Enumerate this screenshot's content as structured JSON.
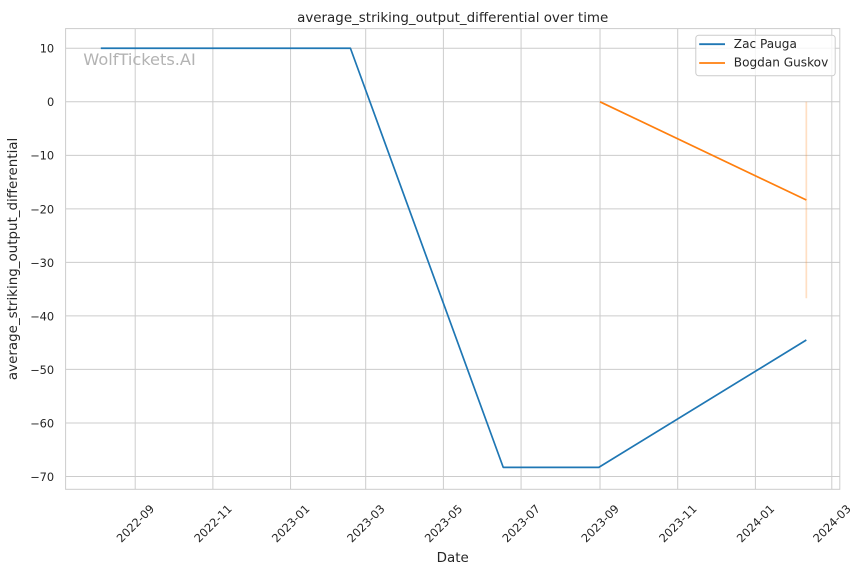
{
  "chart_data": {
    "type": "line",
    "title": "average_striking_output_differential over time",
    "xlabel": "Date",
    "ylabel": "average_striking_output_differential",
    "watermark": "WolfTickets.AI",
    "grid": true,
    "legend": {
      "position": "upper right",
      "entries": [
        {
          "label": "Zac Pauga",
          "color": "#1f77b4"
        },
        {
          "label": "Bogdan Guskov",
          "color": "#ff7f0e"
        }
      ]
    },
    "x_axis": {
      "label": "Date",
      "tick_labels": [
        "2022-09",
        "2022-11",
        "2023-01",
        "2023-03",
        "2023-05",
        "2023-07",
        "2023-09",
        "2023-11",
        "2024-01",
        "2024-03"
      ],
      "range": [
        "2022-07-08",
        "2024-03-09"
      ]
    },
    "y_axis": {
      "label": "average_striking_output_differential",
      "tick_labels": [
        "10",
        "0",
        "−10",
        "−20",
        "−30",
        "−40",
        "−50",
        "−60",
        "−70"
      ],
      "tick_values": [
        10,
        0,
        -10,
        -20,
        -30,
        -40,
        -50,
        -60,
        -70
      ],
      "range": [
        -72.3,
        13.9
      ]
    },
    "series": [
      {
        "name": "Zac Pauga",
        "color": "#1f77b4",
        "points": [
          {
            "date": "2022-08-05",
            "value": 10
          },
          {
            "date": "2023-02-17",
            "value": 10
          },
          {
            "date": "2023-06-17",
            "value": -68.3
          },
          {
            "date": "2023-08-31",
            "value": -68.3
          },
          {
            "date": "2024-02-10",
            "value": -44.5
          }
        ]
      },
      {
        "name": "Bogdan Guskov",
        "color": "#ff7f0e",
        "points": [
          {
            "date": "2023-09-01",
            "value": 0
          },
          {
            "date": "2024-02-10",
            "value": -18.35
          }
        ],
        "error_bars": [
          {
            "date": "2024-02-10",
            "low": -36.7,
            "high": 0
          }
        ]
      }
    ],
    "colors": {
      "grid": "#cccccc",
      "spine": "#cccccc",
      "text": "#262626",
      "watermark": "#b3b3b3",
      "background": "#ffffff"
    }
  }
}
